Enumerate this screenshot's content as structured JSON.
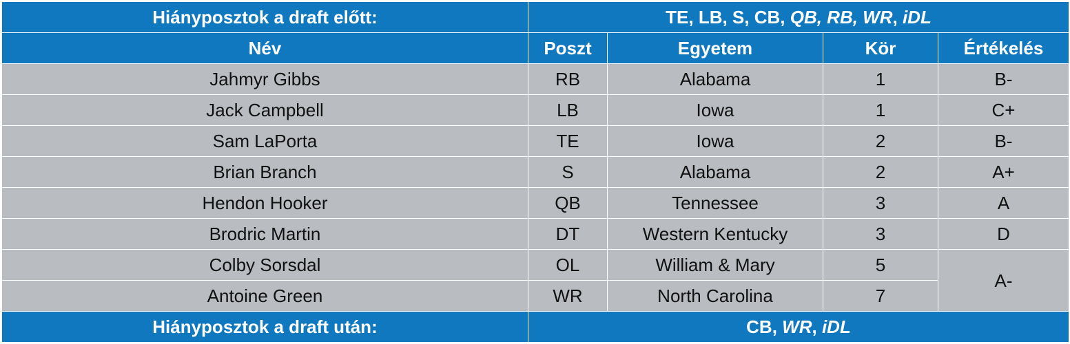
{
  "needs_before": {
    "label": "Hiányposztok a draft előtt:",
    "plain": "TE, LB, S, CB, ",
    "italic": "QB, RB, WR",
    "sep": ", ",
    "last": "iDL"
  },
  "columns": {
    "name": "Név",
    "pos": "Poszt",
    "college": "Egyetem",
    "round": "Kör",
    "grade": "Értékelés"
  },
  "rows": [
    {
      "name": "Jahmyr Gibbs",
      "pos": "RB",
      "college": "Alabama",
      "round": "1",
      "grade": "B-"
    },
    {
      "name": "Jack Campbell",
      "pos": "LB",
      "college": "Iowa",
      "round": "1",
      "grade": "C+"
    },
    {
      "name": "Sam LaPorta",
      "pos": "TE",
      "college": "Iowa",
      "round": "2",
      "grade": "B-"
    },
    {
      "name": "Brian Branch",
      "pos": "S",
      "college": "Alabama",
      "round": "2",
      "grade": "A+"
    },
    {
      "name": "Hendon Hooker",
      "pos": "QB",
      "college": "Tennessee",
      "round": "3",
      "grade": "A"
    },
    {
      "name": "Brodric Martin",
      "pos": "DT",
      "college": "Western Kentucky",
      "round": "3",
      "grade": "D"
    },
    {
      "name": "Colby Sorsdal",
      "pos": "OL",
      "college": "William & Mary",
      "round": "5",
      "grade": "A-"
    },
    {
      "name": "Antoine Green",
      "pos": "WR",
      "college": "North Carolina",
      "round": "7"
    }
  ],
  "needs_after": {
    "label": "Hiányposztok a draft után:",
    "plain": "CB, ",
    "italic": "WR",
    "sep": ", ",
    "last": "iDL"
  }
}
